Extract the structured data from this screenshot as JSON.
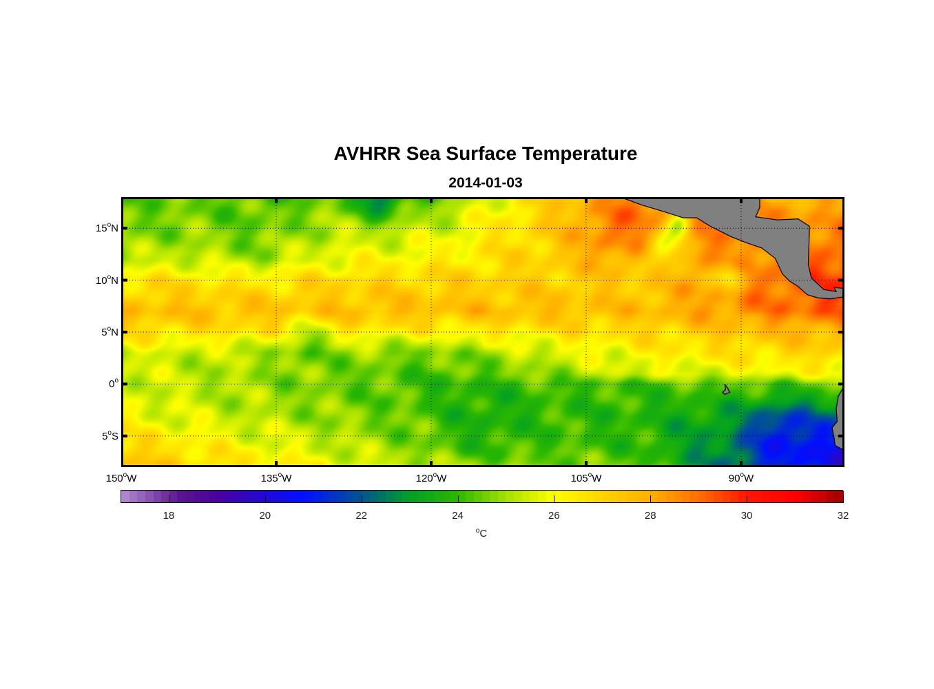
{
  "title": "AVHRR Sea Surface Temperature",
  "subtitle": "2014-01-03",
  "colors": {
    "land": "#808080",
    "frame": "#000000"
  },
  "chart_data": {
    "type": "heatmap",
    "title": "AVHRR Sea Surface Temperature",
    "subtitle": "2014-01-03",
    "lon_range": [
      -150,
      -80
    ],
    "lat_range": [
      -8,
      18
    ],
    "lon_ticks": [
      {
        "value": -150,
        "num": "150",
        "hemi": "W"
      },
      {
        "value": -135,
        "num": "135",
        "hemi": "W"
      },
      {
        "value": -120,
        "num": "120",
        "hemi": "W"
      },
      {
        "value": -105,
        "num": "105",
        "hemi": "W"
      },
      {
        "value": -90,
        "num": "90",
        "hemi": "W"
      }
    ],
    "lat_ticks": [
      {
        "value": 15,
        "num": "15",
        "hemi": "N"
      },
      {
        "value": 10,
        "num": "10",
        "hemi": "N"
      },
      {
        "value": 5,
        "num": "5",
        "hemi": "N"
      },
      {
        "value": 0,
        "num": "0",
        "hemi": ""
      },
      {
        "value": -5,
        "num": "5",
        "hemi": "S"
      }
    ],
    "grid": "dotted",
    "colorbar": {
      "range": [
        17,
        32
      ],
      "ticks": [
        "18",
        "20",
        "22",
        "24",
        "26",
        "28",
        "30",
        "32"
      ],
      "unit_degree": "o",
      "unit": "C",
      "placement": "bottom"
    }
  }
}
